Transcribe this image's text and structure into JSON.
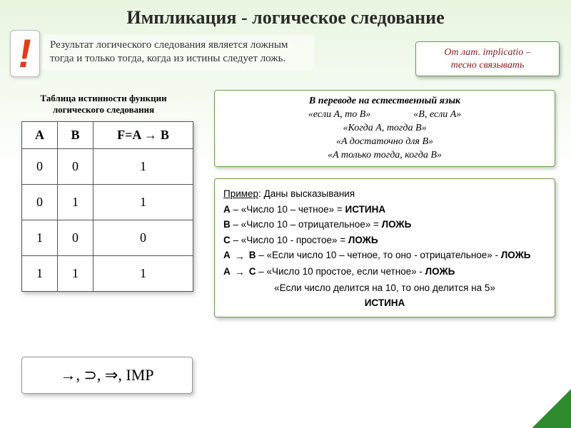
{
  "title": "Импликация - логическое следование",
  "exclamation": "!",
  "definition": "Результат логического следования является ложным тогда и только тогда, когда из истины следует ложь.",
  "latin": {
    "line1": "От лат. implicatio –",
    "line2": "тесно связывать"
  },
  "truth": {
    "caption": "Таблица истинности функции логического следования",
    "headers": {
      "a": "A",
      "b": "B",
      "f1": "F=A",
      "f2": "B"
    },
    "rows": [
      {
        "a": "0",
        "b": "0",
        "f": "1"
      },
      {
        "a": "0",
        "b": "1",
        "f": "1"
      },
      {
        "a": "1",
        "b": "0",
        "f": "0"
      },
      {
        "a": "1",
        "b": "1",
        "f": "1"
      }
    ]
  },
  "natural": {
    "title": "В переводе на естественный язык",
    "r1a": "«если A, то B»",
    "r1b": "«B, если A»",
    "r2": "«Когда A, тогда B»",
    "r3": "«A достаточно для B»",
    "r4": "«A только тогда, когда B»"
  },
  "example": {
    "header_u": "Пример",
    "header_rest": ":  Даны высказывания",
    "la": "A",
    "sa": " – «Число 10 – четное» = ",
    "va": "ИСТИНА",
    "lb": "B",
    "sb": " – «Число 10 – отрицательное» = ",
    "vb": "ЛОЖЬ",
    "lc": "C",
    "sc": " – «Число 10 - простое» = ",
    "vc": "ЛОЖЬ",
    "ab1": "A",
    "ab2": "B",
    "ab_text": " – «Если число 10 – четное, то оно - отрицательное» - ",
    "ab_val": "ЛОЖЬ",
    "ac1": "A",
    "ac2": "C",
    "ac_text": " – «Число 10 простое, если четное» - ",
    "ac_val": "ЛОЖЬ",
    "last_stmt": "«Если число делится на 10, то оно делится на 5»",
    "last_val": "ИСТИНА"
  },
  "notation": "→, ⊃, ⇒, IMP",
  "colors": {
    "accent_border": "#6a9e4a",
    "excl_color": "#e23b1a",
    "latin_text": "#8a1a1a",
    "corner": "#2e8b2e"
  }
}
